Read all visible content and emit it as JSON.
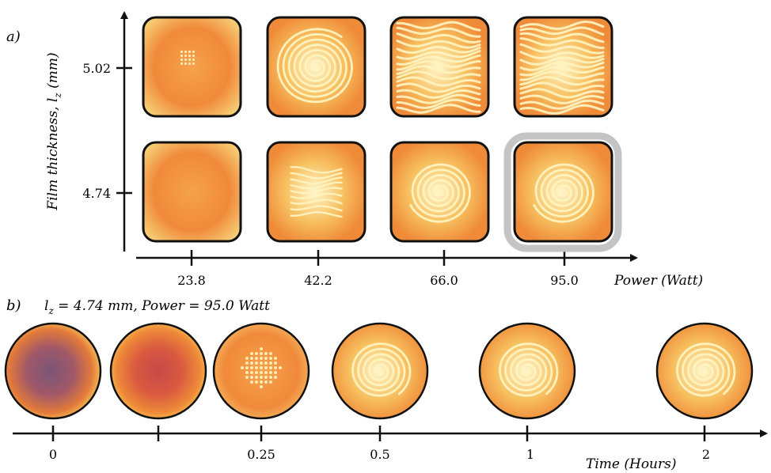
{
  "panel_a": {
    "label": "a)",
    "y_axis_label": "Film thickness, l",
    "y_axis_subscript": "z",
    "y_axis_unit": " (mm)",
    "y_ticks": [
      "5.02",
      "4.74"
    ],
    "x_ticks": [
      "23.8",
      "42.2",
      "66.0",
      "95.0"
    ],
    "x_axis_label": "Power (Watt)",
    "grid": [
      [
        {
          "pattern": "few-spots"
        },
        {
          "pattern": "spiral-stripes"
        },
        {
          "pattern": "dense-stripes"
        },
        {
          "pattern": "dense-stripes"
        }
      ],
      [
        {
          "pattern": "none"
        },
        {
          "pattern": "weak-stripes"
        },
        {
          "pattern": "spiral-stripes"
        },
        {
          "pattern": "spiral-stripes",
          "highlighted": true
        }
      ]
    ]
  },
  "panel_b": {
    "label": "b)",
    "title_lz": "l",
    "title_sub": "z",
    "title_rest": " = 4.74 mm, Power = 95.0 Watt",
    "time_ticks": [
      "0",
      "0.25",
      "0.5",
      "1",
      "2"
    ],
    "time_axis_label": "Time (Hours)",
    "snapshots": [
      {
        "time": "0",
        "pattern": "purple-hot"
      },
      {
        "time": "",
        "pattern": "red-hot"
      },
      {
        "time": "0.25",
        "pattern": "spots"
      },
      {
        "time": "0.5",
        "pattern": "spiral-stripes"
      },
      {
        "time": "1",
        "pattern": "spiral-stripes"
      },
      {
        "time": "2",
        "pattern": "spiral-stripes"
      }
    ]
  },
  "colors": {
    "background": "#f29a44",
    "stripe": "#fff3c0",
    "frame": "#111111",
    "highlight": "#bdbdbd"
  }
}
